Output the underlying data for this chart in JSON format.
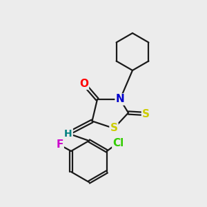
{
  "bg_color": "#ececec",
  "bond_color": "#1a1a1a",
  "atom_colors": {
    "O": "#ff0000",
    "N": "#0000cc",
    "S_thioxo": "#cccc00",
    "S_ring": "#cccc00",
    "Cl": "#33cc00",
    "F": "#cc00cc",
    "H": "#008080",
    "C": "#1a1a1a"
  },
  "bond_width": 1.6,
  "font_size_atom": 11,
  "font_size_small": 10
}
